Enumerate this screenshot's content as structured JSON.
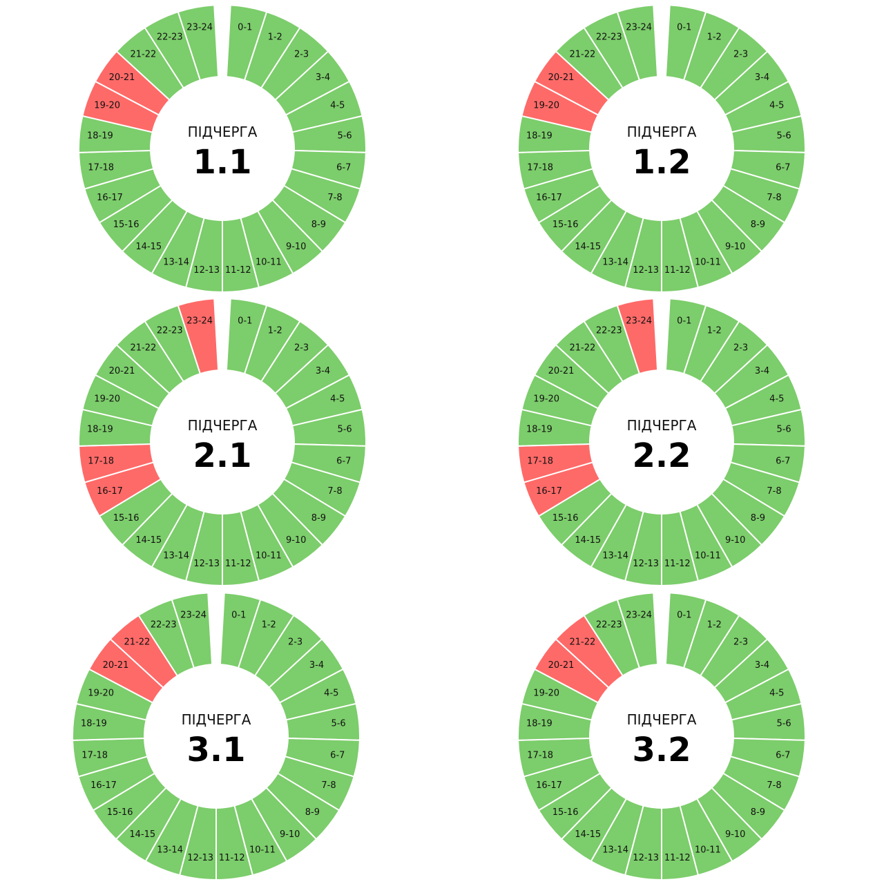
{
  "colors": {
    "power_on": "#7ccd6b",
    "power_off": "#fe6a68",
    "separator": "#ffffff",
    "background": "#ffffff"
  },
  "chart_data": [
    {
      "type": "donut",
      "title": "ПІДЧЕРГА",
      "number": "1.1",
      "categories": [
        "0-1",
        "1-2",
        "2-3",
        "3-4",
        "4-5",
        "5-6",
        "6-7",
        "7-8",
        "8-9",
        "9-10",
        "10-11",
        "11-12",
        "12-13",
        "13-14",
        "14-15",
        "15-16",
        "16-17",
        "17-18",
        "18-19",
        "19-20",
        "20-21",
        "21-22",
        "22-23",
        "23-24"
      ],
      "status": [
        "on",
        "on",
        "on",
        "on",
        "on",
        "on",
        "on",
        "on",
        "on",
        "on",
        "on",
        "on",
        "on",
        "on",
        "on",
        "on",
        "on",
        "on",
        "on",
        "off",
        "off",
        "on",
        "on",
        "on"
      ]
    },
    {
      "type": "donut",
      "title": "ПІДЧЕРГА",
      "number": "1.2",
      "categories": [
        "0-1",
        "1-2",
        "2-3",
        "3-4",
        "4-5",
        "5-6",
        "6-7",
        "7-8",
        "8-9",
        "9-10",
        "10-11",
        "11-12",
        "12-13",
        "13-14",
        "14-15",
        "15-16",
        "16-17",
        "17-18",
        "18-19",
        "19-20",
        "20-21",
        "21-22",
        "22-23",
        "23-24"
      ],
      "status": [
        "on",
        "on",
        "on",
        "on",
        "on",
        "on",
        "on",
        "on",
        "on",
        "on",
        "on",
        "on",
        "on",
        "on",
        "on",
        "on",
        "on",
        "on",
        "on",
        "off",
        "off",
        "on",
        "on",
        "on"
      ]
    },
    {
      "type": "donut",
      "title": "ПІДЧЕРГА",
      "number": "2.1",
      "categories": [
        "0-1",
        "1-2",
        "2-3",
        "3-4",
        "4-5",
        "5-6",
        "6-7",
        "7-8",
        "8-9",
        "9-10",
        "10-11",
        "11-12",
        "12-13",
        "13-14",
        "14-15",
        "15-16",
        "16-17",
        "17-18",
        "18-19",
        "19-20",
        "20-21",
        "21-22",
        "22-23",
        "23-24"
      ],
      "status": [
        "on",
        "on",
        "on",
        "on",
        "on",
        "on",
        "on",
        "on",
        "on",
        "on",
        "on",
        "on",
        "on",
        "on",
        "on",
        "on",
        "off",
        "off",
        "on",
        "on",
        "on",
        "on",
        "on",
        "off"
      ]
    },
    {
      "type": "donut",
      "title": "ПІДЧЕРГА",
      "number": "2.2",
      "categories": [
        "0-1",
        "1-2",
        "2-3",
        "3-4",
        "4-5",
        "5-6",
        "6-7",
        "7-8",
        "8-9",
        "9-10",
        "10-11",
        "11-12",
        "12-13",
        "13-14",
        "14-15",
        "15-16",
        "16-17",
        "17-18",
        "18-19",
        "19-20",
        "20-21",
        "21-22",
        "22-23",
        "23-24"
      ],
      "status": [
        "on",
        "on",
        "on",
        "on",
        "on",
        "on",
        "on",
        "on",
        "on",
        "on",
        "on",
        "on",
        "on",
        "on",
        "on",
        "on",
        "off",
        "off",
        "on",
        "on",
        "on",
        "on",
        "on",
        "off"
      ]
    },
    {
      "type": "donut",
      "title": "ПІДЧЕРГА",
      "number": "3.1",
      "categories": [
        "0-1",
        "1-2",
        "2-3",
        "3-4",
        "4-5",
        "5-6",
        "6-7",
        "7-8",
        "8-9",
        "9-10",
        "10-11",
        "11-12",
        "12-13",
        "13-14",
        "14-15",
        "15-16",
        "16-17",
        "17-18",
        "18-19",
        "19-20",
        "20-21",
        "21-22",
        "22-23",
        "23-24"
      ],
      "status": [
        "on",
        "on",
        "on",
        "on",
        "on",
        "on",
        "on",
        "on",
        "on",
        "on",
        "on",
        "on",
        "on",
        "on",
        "on",
        "on",
        "on",
        "on",
        "on",
        "on",
        "off",
        "off",
        "on",
        "on"
      ]
    },
    {
      "type": "donut",
      "title": "ПІДЧЕРГА",
      "number": "3.2",
      "categories": [
        "0-1",
        "1-2",
        "2-3",
        "3-4",
        "4-5",
        "5-6",
        "6-7",
        "7-8",
        "8-9",
        "9-10",
        "10-11",
        "11-12",
        "12-13",
        "13-14",
        "14-15",
        "15-16",
        "16-17",
        "17-18",
        "18-19",
        "19-20",
        "20-21",
        "21-22",
        "22-23",
        "23-24"
      ],
      "status": [
        "on",
        "on",
        "on",
        "on",
        "on",
        "on",
        "on",
        "on",
        "on",
        "on",
        "on",
        "on",
        "on",
        "on",
        "on",
        "on",
        "on",
        "on",
        "on",
        "on",
        "off",
        "off",
        "on",
        "on"
      ]
    }
  ]
}
